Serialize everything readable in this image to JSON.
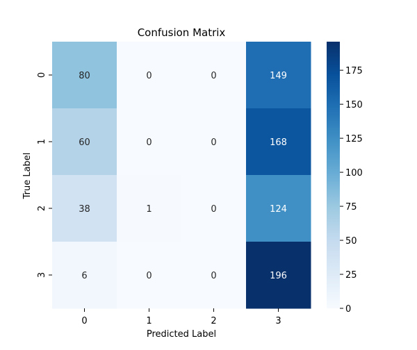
{
  "chart_data": {
    "type": "heatmap",
    "title": "Confusion Matrix",
    "xlabel": "Predicted Label",
    "ylabel": "True Label",
    "x_categories": [
      "0",
      "1",
      "2",
      "3"
    ],
    "y_categories": [
      "0",
      "1",
      "2",
      "3"
    ],
    "values": [
      [
        80,
        0,
        0,
        149
      ],
      [
        60,
        0,
        0,
        168
      ],
      [
        38,
        1,
        0,
        124
      ],
      [
        6,
        0,
        0,
        196
      ]
    ],
    "colorscale": "Blues",
    "vmin": 0,
    "vmax": 196,
    "colorbar_ticks": [
      "0",
      "25",
      "50",
      "75",
      "100",
      "125",
      "150",
      "175"
    ],
    "legend": "colorbar-right"
  }
}
